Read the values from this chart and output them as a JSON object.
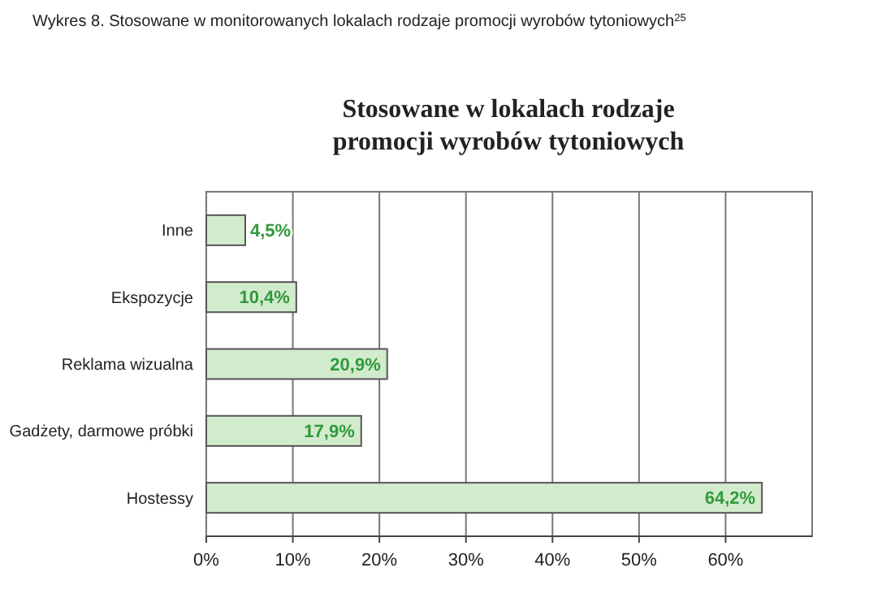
{
  "chart_data": {
    "type": "bar",
    "orientation": "horizontal",
    "title": "Stosowane w lokalach rodzaje\npromocji wyrobów tytoniowych",
    "annotations": [
      "Wykres 8. Stosowane w monitorowanych lokalach rodzaje promocji wyrobów tytoniowych$^{25}$"
    ],
    "categories": [
      "Inne",
      "Ekspozycje",
      "Reklama wizualna",
      "Gadżety, darmowe próbki",
      "Hostessy"
    ],
    "values": [
      4.5,
      10.4,
      20.9,
      17.9,
      64.2
    ],
    "value_labels": [
      "4,5%",
      "10,4%",
      "20,9%",
      "17,9%",
      "64,2%"
    ],
    "color": "#d3ebcd",
    "xlim": [
      0,
      70
    ],
    "xticks": [
      {
        "value": 0,
        "label": "0%"
      },
      {
        "value": 10,
        "label": "10%"
      },
      {
        "value": 20,
        "label": "20%"
      },
      {
        "value": 30,
        "label": "30%"
      },
      {
        "value": 40,
        "label": "40%"
      },
      {
        "value": 50,
        "label": "50%"
      },
      {
        "value": 60,
        "label": "60%"
      }
    ],
    "grid": "x"
  }
}
